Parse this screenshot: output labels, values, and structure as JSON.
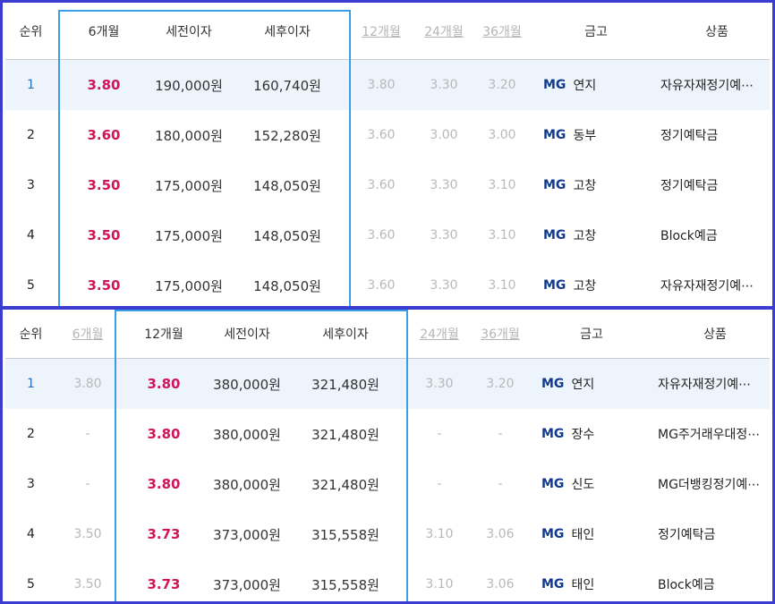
{
  "top_table": {
    "headers": {
      "rank": "순위",
      "m6": "6개월",
      "pretax": "세전이자",
      "aftertax": "세후이자",
      "m12": "12개월",
      "m24": "24개월",
      "m36": "36개월",
      "bank": "금고",
      "product": "상품"
    },
    "rows": [
      {
        "rank": "1",
        "m6": "3.80",
        "pretax": "190,000원",
        "aftertax": "160,740원",
        "m12": "3.80",
        "m24": "3.30",
        "m36": "3.20",
        "bank_logo": "MG",
        "bank": "연지",
        "product": "자유자재정기예⋯"
      },
      {
        "rank": "2",
        "m6": "3.60",
        "pretax": "180,000원",
        "aftertax": "152,280원",
        "m12": "3.60",
        "m24": "3.00",
        "m36": "3.00",
        "bank_logo": "MG",
        "bank": "동부",
        "product": "정기예탁금"
      },
      {
        "rank": "3",
        "m6": "3.50",
        "pretax": "175,000원",
        "aftertax": "148,050원",
        "m12": "3.60",
        "m24": "3.30",
        "m36": "3.10",
        "bank_logo": "MG",
        "bank": "고창",
        "product": "정기예탁금"
      },
      {
        "rank": "4",
        "m6": "3.50",
        "pretax": "175,000원",
        "aftertax": "148,050원",
        "m12": "3.60",
        "m24": "3.30",
        "m36": "3.10",
        "bank_logo": "MG",
        "bank": "고창",
        "product": "Block예금"
      },
      {
        "rank": "5",
        "m6": "3.50",
        "pretax": "175,000원",
        "aftertax": "148,050원",
        "m12": "3.60",
        "m24": "3.30",
        "m36": "3.10",
        "bank_logo": "MG",
        "bank": "고창",
        "product": "자유자재정기예⋯"
      }
    ]
  },
  "bottom_table": {
    "headers": {
      "rank": "순위",
      "m6": "6개월",
      "m12": "12개월",
      "pretax": "세전이자",
      "aftertax": "세후이자",
      "m24": "24개월",
      "m36": "36개월",
      "bank": "금고",
      "product": "상품"
    },
    "rows": [
      {
        "rank": "1",
        "m6": "3.80",
        "m12": "3.80",
        "pretax": "380,000원",
        "aftertax": "321,480원",
        "m24": "3.30",
        "m36": "3.20",
        "bank_logo": "MG",
        "bank": "연지",
        "product": "자유자재정기예⋯"
      },
      {
        "rank": "2",
        "m6": "-",
        "m12": "3.80",
        "pretax": "380,000원",
        "aftertax": "321,480원",
        "m24": "-",
        "m36": "-",
        "bank_logo": "MG",
        "bank": "장수",
        "product": "MG주거래우대정⋯"
      },
      {
        "rank": "3",
        "m6": "-",
        "m12": "3.80",
        "pretax": "380,000원",
        "aftertax": "321,480원",
        "m24": "-",
        "m36": "-",
        "bank_logo": "MG",
        "bank": "신도",
        "product": "MG더뱅킹정기예⋯"
      },
      {
        "rank": "4",
        "m6": "3.50",
        "m12": "3.73",
        "pretax": "373,000원",
        "aftertax": "315,558원",
        "m24": "3.10",
        "m36": "3.06",
        "bank_logo": "MG",
        "bank": "태인",
        "product": "정기예탁금"
      },
      {
        "rank": "5",
        "m6": "3.50",
        "m12": "3.73",
        "pretax": "373,000원",
        "aftertax": "315,558원",
        "m24": "3.10",
        "m36": "3.06",
        "bank_logo": "MG",
        "bank": "태인",
        "product": "Block예금"
      }
    ]
  },
  "colors": {
    "panel_border": "#3b3dd1",
    "selected_frame": "#3a9ee4",
    "rate_text": "#d2145a",
    "highlight_row": "#edf4fc",
    "muted_text": "#b8b8b8",
    "rank_first": "#2b72b8",
    "mg_logo": "#123a8c"
  }
}
